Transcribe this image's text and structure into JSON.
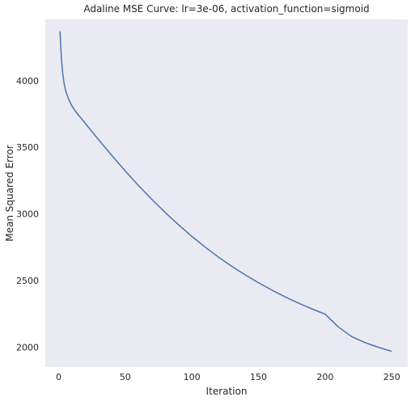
{
  "chart_data": {
    "type": "line",
    "title": "Adaline MSE Curve: lr=3e-06, activation_function=sigmoid",
    "xlabel": "Iteration",
    "ylabel": "Mean Squared Error",
    "xlim": [
      -10,
      262
    ],
    "ylim": [
      1850,
      4460
    ],
    "x_ticks": [
      0,
      50,
      100,
      150,
      200,
      250
    ],
    "y_ticks": [
      2000,
      2500,
      3000,
      3500,
      4000
    ],
    "grid": false,
    "background": "#eaeaf2",
    "series": [
      {
        "color": "#4c72b0",
        "x": [
          1,
          2,
          3,
          4,
          5,
          6,
          8,
          10,
          12,
          15,
          20,
          25,
          30,
          40,
          50,
          60,
          70,
          80,
          90,
          100,
          110,
          120,
          130,
          140,
          150,
          160,
          170,
          180,
          190,
          200,
          210,
          220,
          230,
          240,
          250
        ],
        "values": [
          4370,
          4180,
          4060,
          3985,
          3935,
          3900,
          3850,
          3810,
          3780,
          3740,
          3680,
          3618,
          3557,
          3437,
          3322,
          3212,
          3108,
          3010,
          2918,
          2831,
          2750,
          2675,
          2606,
          2542,
          2483,
          2428,
          2377,
          2330,
          2287,
          2247,
          2150,
          2078,
          2033,
          1998,
          1968
        ]
      }
    ]
  }
}
